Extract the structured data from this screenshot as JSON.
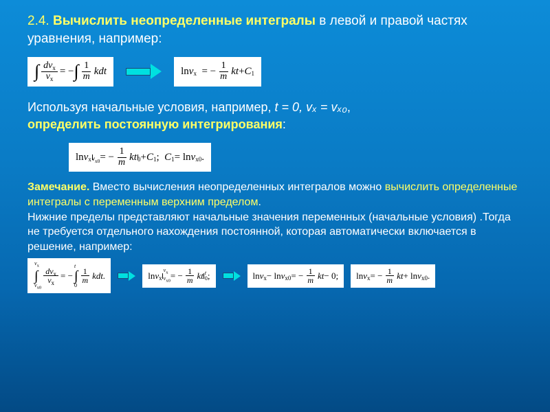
{
  "colors": {
    "bg_top": "#0d8cd8",
    "bg_bottom": "#034a85",
    "text": "#ffffff",
    "accent": "#ffff66",
    "eq_bg": "#ffffff",
    "eq_text": "#000000",
    "arrow_fill": "#00e0e0"
  },
  "typography": {
    "body_font": "Arial",
    "math_font": "Times New Roman",
    "title_size_pt": 19,
    "para_size_pt": 18,
    "small_para_size_pt": 16,
    "eq_size_pt": 15
  },
  "title": {
    "num": "2.4. ",
    "bold": "Вычислить неопределенные интегралы",
    "rest": " в левой и правой частях уравнения, например:"
  },
  "eq1_left": "∫ (dvₓ / vₓ) = −∫ (1/m) k dt",
  "eq1_right": "ln vₓ = −(1/m) kt + C₁",
  "para1": {
    "pre": "Используя начальные условия, например, ",
    "cond": "t = 0, vₓ = vₓ₀",
    "post": ",",
    "line2": "определить постоянную интегрирования",
    "colon": ":"
  },
  "eq2": "ln vₓ |_{vₓ₀} = −(1/m) kt |₀ + C₁ ;   C₁ = ln vₓ₀ .",
  "note": {
    "label": "Замечание.",
    "t1": " Вместо вычисления неопределенных интегралов можно ",
    "y1": "вычислить определенные интегралы с переменным верхним пределом",
    "t2": ".",
    "t3": "Нижние пределы представляют начальные значения переменных (начальные условия) .Тогда не требуется отдельного нахождения постоянной, которая автоматически включается в решение, например:"
  },
  "eq3_a": "∫_{vₓ₀}^{vₓ} (dvₓ/vₓ) = −∫₀ᵗ (1/m) k dt.",
  "eq3_b": "ln vₓ |_{vₓ₀}^{vₓ} = −(1/m) kt |₀ᵗ ;",
  "eq3_c": "ln vₓ − ln vₓ₀ = −(1/m) kt − 0;",
  "eq3_d": "ln vₓ = −(1/m) kt + ln vₓ₀ ."
}
